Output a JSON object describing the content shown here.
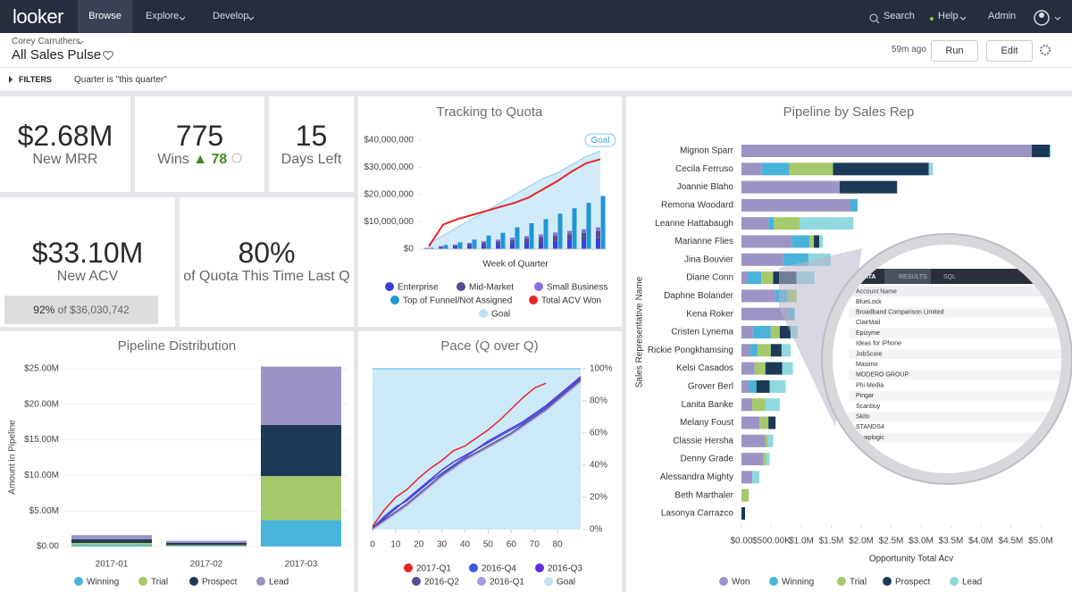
{
  "nav": {
    "logo": "looker",
    "items": [
      "Browse",
      "Explore",
      "Develop"
    ],
    "search": "Search",
    "help": "Help",
    "admin": "Admin"
  },
  "header": {
    "owner": "Corey Carruthers",
    "title": "All Sales Pulse",
    "updated": "59m ago",
    "run": "Run",
    "edit": "Edit"
  },
  "filters": {
    "label": "FILTERS",
    "condition": "Quarter is \"this quarter\""
  },
  "tiles": {
    "mrr": {
      "value": "$2.68M",
      "label": "New MRR"
    },
    "wins": {
      "value": "775",
      "label": "Wins",
      "change": "▲ 78"
    },
    "days": {
      "value": "15",
      "label": "Days Left"
    },
    "acv": {
      "value": "$33.10M",
      "label": "New ACV",
      "percent": "92%",
      "of": "of $36,030,742"
    },
    "last_q": {
      "value": "80%",
      "label": "of Quota This Time Last Q"
    }
  },
  "charts": {
    "quota": {
      "type": "bar",
      "title": "Tracking to Quota",
      "x_label": "Week of Quarter",
      "categories": [
        null,
        null,
        null,
        null,
        null,
        null,
        null,
        null,
        null,
        null,
        null,
        null,
        null
      ],
      "ylim": [
        0,
        40000000
      ],
      "yticks": [
        {
          "value": 0,
          "label": "$0"
        },
        {
          "value": 10000000,
          "label": "$10,000,000"
        },
        {
          "value": 20000000,
          "label": "$20,000,000"
        },
        {
          "value": 30000000,
          "label": "$30,000,000"
        },
        {
          "value": 40000000,
          "label": "$40,000,000"
        }
      ],
      "series": [
        {
          "name": "Enterprise",
          "color": "#3b3fd8",
          "mark": "stacked",
          "values": [
            200000,
            500000,
            800000,
            1000000,
            1300000,
            1600000,
            2000000,
            2300000,
            2600000,
            3000000,
            3300000,
            3600000,
            4000000
          ]
        },
        {
          "name": "Mid-Market",
          "color": "#5c4a8c",
          "mark": "stacked",
          "values": [
            200000,
            400000,
            600000,
            800000,
            1000000,
            1200000,
            1400000,
            1600000,
            1800000,
            2000000,
            2200000,
            2400000,
            2600000
          ]
        },
        {
          "name": "Small Business",
          "color": "#8a6fe2",
          "mark": "stacked",
          "values": [
            100000,
            200000,
            300000,
            500000,
            600000,
            700000,
            800000,
            900000,
            1000000,
            1100000,
            1200000,
            1300000,
            1400000
          ]
        },
        {
          "name": "Top of Funnel/Not Assigned",
          "color": "#1f97d4",
          "mark": "bar",
          "values": [
            500000,
            1500000,
            2500000,
            3500000,
            5000000,
            6000000,
            8000000,
            9500000,
            11000000,
            13000000,
            15000000,
            17000000,
            19500000
          ]
        },
        {
          "name": "Total ACV Won",
          "color": "#e8242a",
          "mark": "line",
          "values": [
            1000000,
            9000000,
            11000000,
            12500000,
            14000000,
            15500000,
            17000000,
            19000000,
            22000000,
            25000000,
            28500000,
            31500000,
            33000000
          ]
        },
        {
          "name": "Goal",
          "color": "#bfe3f5",
          "mark": "area",
          "values": [
            2000000,
            5000000,
            8000000,
            11000000,
            14000000,
            17000000,
            20000000,
            23000000,
            26000000,
            28000000,
            31000000,
            34000000,
            36000000
          ]
        }
      ]
    },
    "pipeline_rep": {
      "type": "bar",
      "horizontal": true,
      "stacked": true,
      "title": "Pipeline by Sales Rep",
      "x_label": "Opportunity Total Acv",
      "y_label": "Sales Representative Name",
      "categories": [
        "Mignon Sparr",
        "Cecila Ferruso",
        "Joannie Blaho",
        "Remona Woodard",
        "Leanne Hattabaugh",
        "Marianne Flies",
        "Jina Bouvier",
        "Diane Conn",
        "Daphne Bolander",
        "Kena Roker",
        "Cristen Lynema",
        "Rickie Pongkhamsing",
        "Kelsi Casados",
        "Grover Berl",
        "Lanita Banke",
        "Melany Foust",
        "Classie Hersha",
        "Denny Grade",
        "Alessandra Mighty",
        "Beth Marthaler",
        "Lasonya Carrazco"
      ],
      "xlim": [
        0,
        5200000
      ],
      "xticks": [
        {
          "value": 0,
          "label": "$0.00"
        },
        {
          "value": 500000,
          "label": "$500.00K"
        },
        {
          "value": 1000000,
          "label": "$1.0M"
        },
        {
          "value": 1500000,
          "label": "$1.5M"
        },
        {
          "value": 2000000,
          "label": "$2.0M"
        },
        {
          "value": 2500000,
          "label": "$2.5M"
        },
        {
          "value": 3000000,
          "label": "$3.0M"
        },
        {
          "value": 3500000,
          "label": "$3.5M"
        },
        {
          "value": 4000000,
          "label": "$4.0M"
        },
        {
          "value": 4500000,
          "label": "$4.5M"
        },
        {
          "value": 5000000,
          "label": "$5.0M"
        }
      ],
      "series": [
        {
          "name": "Won",
          "color": "#9b94c4",
          "values": [
            4850000,
            340000,
            1640000,
            1820000,
            450000,
            840000,
            690000,
            90000,
            570000,
            790000,
            190000,
            150000,
            220000,
            120000,
            180000,
            300000,
            400000,
            370000,
            180000,
            0,
            0
          ]
        },
        {
          "name": "Winning",
          "color": "#4ab3d9",
          "values": [
            0,
            460000,
            0,
            120000,
            90000,
            300000,
            430000,
            240000,
            200000,
            100000,
            300000,
            120000,
            0,
            130000,
            0,
            0,
            0,
            0,
            0,
            0,
            0
          ]
        },
        {
          "name": "Trial",
          "color": "#a5c86a",
          "values": [
            0,
            730000,
            0,
            0,
            430000,
            70000,
            0,
            200000,
            150000,
            0,
            150000,
            220000,
            180000,
            0,
            220000,
            150000,
            40000,
            40000,
            0,
            120000,
            0
          ]
        },
        {
          "name": "Prospect",
          "color": "#1c3a57",
          "values": [
            300000,
            1600000,
            960000,
            0,
            0,
            90000,
            0,
            390000,
            0,
            0,
            180000,
            180000,
            280000,
            220000,
            0,
            120000,
            0,
            0,
            0,
            0,
            60000
          ]
        },
        {
          "name": "Lead",
          "color": "#8fd8e0",
          "values": [
            20000,
            70000,
            0,
            0,
            900000,
            60000,
            370000,
            300000,
            0,
            0,
            120000,
            150000,
            180000,
            270000,
            240000,
            0,
            90000,
            60000,
            120000,
            0,
            0
          ]
        }
      ]
    },
    "distribution": {
      "type": "bar",
      "stacked": true,
      "title": "Pipeline Distribution",
      "y_label": "Amount in Pipeline",
      "categories": [
        "2017-01",
        "2017-02",
        "2017-03"
      ],
      "ylim": [
        0,
        26000000
      ],
      "yticks": [
        {
          "value": 0,
          "label": "$0.00"
        },
        {
          "value": 5000000,
          "label": "$5.00M"
        },
        {
          "value": 10000000,
          "label": "$10.00M"
        },
        {
          "value": 15000000,
          "label": "$15.00M"
        },
        {
          "value": 20000000,
          "label": "$20.00M"
        },
        {
          "value": 25000000,
          "label": "$25.00M"
        }
      ],
      "grid": true,
      "series": [
        {
          "name": "Winning",
          "color": "#4ab3d9",
          "values": [
            200000,
            100000,
            3700000
          ]
        },
        {
          "name": "Trial",
          "color": "#a5c86a",
          "values": [
            300000,
            100000,
            6200000
          ]
        },
        {
          "name": "Prospect",
          "color": "#1c3a57",
          "values": [
            500000,
            300000,
            7200000
          ]
        },
        {
          "name": "Lead",
          "color": "#9b94c4",
          "values": [
            600000,
            300000,
            8200000
          ]
        }
      ]
    },
    "pace": {
      "type": "line",
      "title": "Pace (Q over Q)",
      "xlim": [
        0,
        90
      ],
      "xticks": [
        0,
        10,
        20,
        30,
        40,
        50,
        60,
        70,
        80
      ],
      "ylim": [
        0,
        100
      ],
      "yticks": [
        {
          "value": 0,
          "label": "0%"
        },
        {
          "value": 20,
          "label": "20%"
        },
        {
          "value": 40,
          "label": "40%"
        },
        {
          "value": 60,
          "label": "60%"
        },
        {
          "value": 80,
          "label": "80%"
        },
        {
          "value": 100,
          "label": "100%"
        }
      ],
      "series": [
        {
          "name": "2017-Q1",
          "color": "#e8242a",
          "mark": "line",
          "x": [
            0,
            5,
            10,
            15,
            20,
            25,
            30,
            35,
            40,
            45,
            50,
            55,
            60,
            65,
            70,
            75
          ],
          "values": [
            2,
            12,
            20,
            25,
            32,
            38,
            43,
            49,
            52,
            57,
            62,
            68,
            75,
            82,
            88,
            91
          ]
        },
        {
          "name": "2016-Q4",
          "color": "#3a5ed9",
          "mark": "line",
          "x": [
            0,
            5,
            10,
            15,
            20,
            25,
            30,
            35,
            40,
            45,
            50,
            55,
            60,
            65,
            70,
            75,
            80,
            85,
            90
          ],
          "values": [
            1,
            8,
            14,
            18,
            24,
            30,
            35,
            40,
            45,
            50,
            54,
            58,
            62,
            66,
            71,
            76,
            82,
            88,
            94
          ]
        },
        {
          "name": "2016-Q3",
          "color": "#5b2ee0",
          "mark": "line",
          "x": [
            0,
            5,
            10,
            15,
            20,
            25,
            30,
            35,
            40,
            45,
            50,
            55,
            60,
            65,
            70,
            75,
            80,
            85,
            90
          ],
          "values": [
            0,
            7,
            13,
            19,
            25,
            31,
            37,
            42,
            46,
            50,
            55,
            59,
            63,
            67,
            72,
            77,
            83,
            89,
            95
          ]
        },
        {
          "name": "2016-Q2",
          "color": "#5c4a8c",
          "mark": "line",
          "x": [
            0,
            5,
            10,
            15,
            20,
            25,
            30,
            35,
            40,
            45,
            50,
            55,
            60,
            65,
            70,
            75,
            80,
            85,
            90
          ],
          "values": [
            1,
            6,
            11,
            16,
            22,
            28,
            34,
            39,
            44,
            48,
            52,
            56,
            60,
            65,
            70,
            75,
            81,
            87,
            93
          ]
        },
        {
          "name": "2016-Q1",
          "color": "#a99ae0",
          "mark": "line",
          "x": [
            0,
            5,
            10,
            15,
            20,
            25,
            30,
            35,
            40,
            45,
            50,
            55,
            60,
            65,
            70,
            75,
            80,
            85,
            90
          ],
          "values": [
            0,
            5,
            10,
            15,
            21,
            27,
            33,
            38,
            43,
            47,
            51,
            55,
            59,
            64,
            69,
            74,
            80,
            86,
            92
          ]
        },
        {
          "name": "Goal",
          "color": "#bfe3f5",
          "mark": "area",
          "x": [
            0,
            90
          ],
          "values": [
            100,
            100
          ]
        }
      ]
    }
  },
  "magnifier": {
    "tab_partial": "LIZATION",
    "tabs": [
      "DATA",
      "RESULTS",
      "SQL"
    ],
    "column": "Account Name",
    "rows": [
      "BlueLock",
      "Broadband Comparison Limited",
      "ClairMail",
      "Epizyme",
      "Ideas for iPhone",
      "JobScore",
      "Masimo",
      "MODERO GROUP",
      "Phi Media",
      "Pingar",
      "Scanbuy",
      "Skito",
      "STANDS4",
      "Swaplogic",
      "Interactive"
    ]
  }
}
